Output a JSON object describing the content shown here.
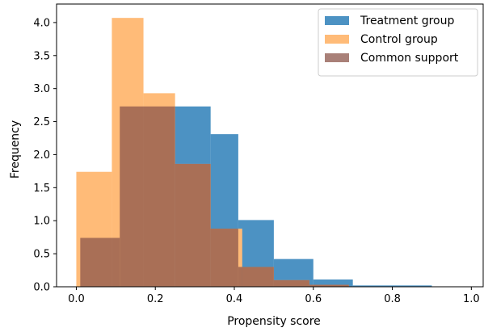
{
  "chart_data": {
    "type": "bar",
    "title": "",
    "xlabel": "Propensity score",
    "ylabel": "Frequency",
    "xlim": [
      -0.05,
      1.03
    ],
    "ylim": [
      0,
      4.28
    ],
    "xticks": [
      "0.0",
      "0.2",
      "0.4",
      "0.6",
      "0.8",
      "1.0"
    ],
    "yticks": [
      "0.0",
      "0.5",
      "1.0",
      "1.5",
      "2.0",
      "2.5",
      "3.0",
      "3.5",
      "4.0"
    ],
    "grid": false,
    "legend_position": "top-right",
    "colors": {
      "treatment": "#1f77b4",
      "control": "#ffbb78",
      "common": "#8c564b"
    },
    "series": [
      {
        "name": "Treatment group",
        "bins": [
          {
            "x0": 0.01,
            "x1": 0.11,
            "y": 0.74
          },
          {
            "x0": 0.11,
            "x1": 0.25,
            "y": 2.73
          },
          {
            "x0": 0.25,
            "x1": 0.34,
            "y": 2.73
          },
          {
            "x0": 0.34,
            "x1": 0.41,
            "y": 2.31
          },
          {
            "x0": 0.41,
            "x1": 0.5,
            "y": 1.01
          },
          {
            "x0": 0.5,
            "x1": 0.6,
            "y": 0.42
          },
          {
            "x0": 0.6,
            "x1": 0.7,
            "y": 0.11
          },
          {
            "x0": 0.7,
            "x1": 0.9,
            "y": 0.02
          }
        ]
      },
      {
        "name": "Control group",
        "bins": [
          {
            "x0": 0.0,
            "x1": 0.09,
            "y": 1.74
          },
          {
            "x0": 0.09,
            "x1": 0.17,
            "y": 4.07
          },
          {
            "x0": 0.17,
            "x1": 0.25,
            "y": 2.93
          },
          {
            "x0": 0.25,
            "x1": 0.34,
            "y": 1.86
          },
          {
            "x0": 0.34,
            "x1": 0.42,
            "y": 0.88
          },
          {
            "x0": 0.42,
            "x1": 0.5,
            "y": 0.3
          },
          {
            "x0": 0.5,
            "x1": 0.59,
            "y": 0.1
          },
          {
            "x0": 0.59,
            "x1": 0.69,
            "y": 0.03
          }
        ]
      },
      {
        "name": "Common support",
        "bins": [
          {
            "x0": 0.01,
            "x1": 0.09,
            "y": 0.74
          },
          {
            "x0": 0.09,
            "x1": 0.11,
            "y": 0.74
          },
          {
            "x0": 0.11,
            "x1": 0.17,
            "y": 2.73
          },
          {
            "x0": 0.17,
            "x1": 0.25,
            "y": 2.73
          },
          {
            "x0": 0.25,
            "x1": 0.34,
            "y": 1.86
          },
          {
            "x0": 0.34,
            "x1": 0.41,
            "y": 0.88
          },
          {
            "x0": 0.41,
            "x1": 0.5,
            "y": 0.3
          },
          {
            "x0": 0.5,
            "x1": 0.59,
            "y": 0.1
          },
          {
            "x0": 0.59,
            "x1": 0.6,
            "y": 0.03
          },
          {
            "x0": 0.6,
            "x1": 0.69,
            "y": 0.03
          }
        ]
      }
    ]
  }
}
